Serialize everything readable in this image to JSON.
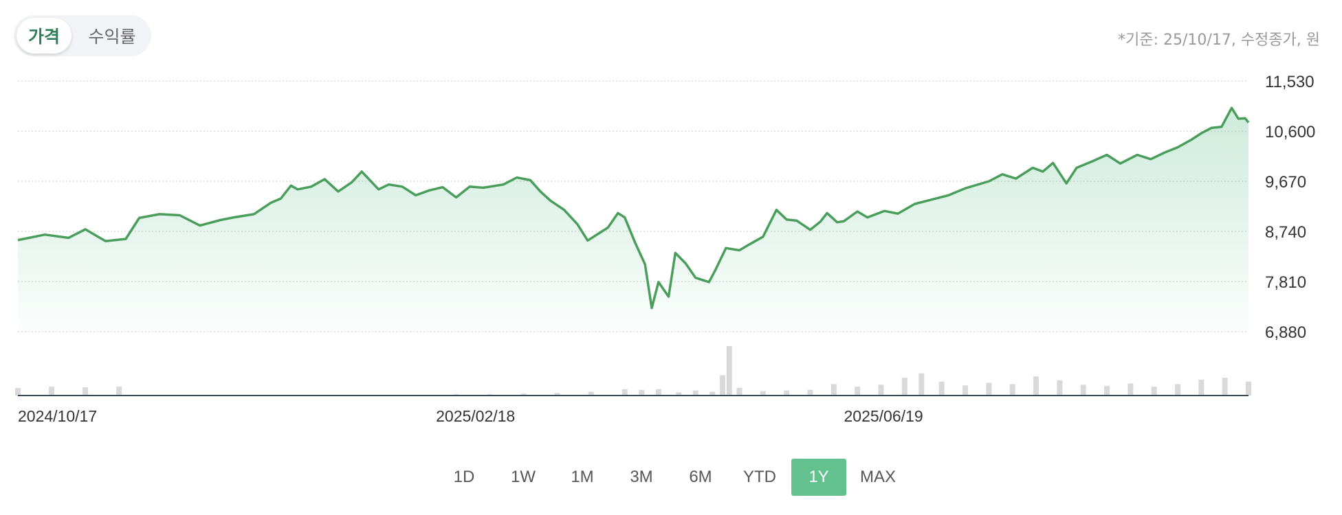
{
  "toggle": {
    "price_label": "가격",
    "return_label": "수익률"
  },
  "basis_note": "*기준: 25/10/17, 수정종가, 원",
  "ranges": [
    {
      "label": "1D",
      "active": false
    },
    {
      "label": "1W",
      "active": false
    },
    {
      "label": "1M",
      "active": false
    },
    {
      "label": "3M",
      "active": false
    },
    {
      "label": "6M",
      "active": false
    },
    {
      "label": "YTD",
      "active": false
    },
    {
      "label": "1Y",
      "active": true
    },
    {
      "label": "MAX",
      "active": false
    }
  ],
  "colors": {
    "line": "#4a9e5c",
    "fill": "#63c08f",
    "active_range": "#63c08f",
    "volume": "#d9d9d9"
  },
  "chart_data": {
    "type": "area",
    "y_ticks": [
      "11,530",
      "10,600",
      "9,670",
      "8,740",
      "7,810",
      "6,880"
    ],
    "ylim": [
      6880,
      11530
    ],
    "x_ticks": [
      "2024/10/17",
      "2025/02/18",
      "2025/06/19"
    ],
    "x_range": [
      "2024/10/17",
      "2025/10/17"
    ],
    "grid": true,
    "price_series": [
      [
        "2024/10/17",
        8580
      ],
      [
        "2024/10/25",
        8680
      ],
      [
        "2024/11/01",
        8620
      ],
      [
        "2024/11/06",
        8780
      ],
      [
        "2024/11/12",
        8560
      ],
      [
        "2024/11/18",
        8600
      ],
      [
        "2024/11/22",
        8990
      ],
      [
        "2024/11/28",
        9060
      ],
      [
        "2024/12/04",
        9040
      ],
      [
        "2024/12/10",
        8850
      ],
      [
        "2024/12/16",
        8950
      ],
      [
        "2024/12/20",
        9000
      ],
      [
        "2024/12/26",
        9060
      ],
      [
        "2024/12/31",
        9270
      ],
      [
        "2025/01/03",
        9350
      ],
      [
        "2025/01/06",
        9590
      ],
      [
        "2025/01/08",
        9520
      ],
      [
        "2025/01/12",
        9570
      ],
      [
        "2025/01/16",
        9710
      ],
      [
        "2025/01/20",
        9480
      ],
      [
        "2025/01/24",
        9650
      ],
      [
        "2025/01/27",
        9850
      ],
      [
        "2025/02/01",
        9520
      ],
      [
        "2025/02/04",
        9610
      ],
      [
        "2025/02/08",
        9570
      ],
      [
        "2025/02/12",
        9410
      ],
      [
        "2025/02/16",
        9500
      ],
      [
        "2025/02/20",
        9560
      ],
      [
        "2025/02/24",
        9370
      ],
      [
        "2025/02/28",
        9570
      ],
      [
        "2025/03/04",
        9550
      ],
      [
        "2025/03/10",
        9610
      ],
      [
        "2025/03/14",
        9740
      ],
      [
        "2025/03/18",
        9690
      ],
      [
        "2025/03/21",
        9480
      ],
      [
        "2025/03/24",
        9310
      ],
      [
        "2025/03/28",
        9140
      ],
      [
        "2025/04/01",
        8870
      ],
      [
        "2025/04/04",
        8570
      ],
      [
        "2025/04/07",
        8690
      ],
      [
        "2025/04/10",
        8810
      ],
      [
        "2025/04/13",
        9080
      ],
      [
        "2025/04/15",
        9000
      ],
      [
        "2025/04/18",
        8540
      ],
      [
        "2025/04/21",
        8130
      ],
      [
        "2025/04/23",
        7320
      ],
      [
        "2025/04/25",
        7800
      ],
      [
        "2025/04/28",
        7530
      ],
      [
        "2025/04/30",
        8340
      ],
      [
        "2025/05/03",
        8150
      ],
      [
        "2025/05/06",
        7880
      ],
      [
        "2025/05/10",
        7800
      ],
      [
        "2025/05/12",
        8040
      ],
      [
        "2025/05/15",
        8430
      ],
      [
        "2025/05/19",
        8390
      ],
      [
        "2025/05/22",
        8500
      ],
      [
        "2025/05/26",
        8640
      ],
      [
        "2025/05/30",
        9140
      ],
      [
        "2025/06/02",
        8960
      ],
      [
        "2025/06/05",
        8940
      ],
      [
        "2025/06/09",
        8770
      ],
      [
        "2025/06/12",
        8920
      ],
      [
        "2025/06/14",
        9080
      ],
      [
        "2025/06/17",
        8910
      ],
      [
        "2025/06/19",
        8930
      ],
      [
        "2025/06/23",
        9110
      ],
      [
        "2025/06/26",
        9000
      ],
      [
        "2025/07/01",
        9120
      ],
      [
        "2025/07/05",
        9070
      ],
      [
        "2025/07/10",
        9250
      ],
      [
        "2025/07/15",
        9330
      ],
      [
        "2025/07/20",
        9410
      ],
      [
        "2025/07/25",
        9540
      ],
      [
        "2025/08/01",
        9670
      ],
      [
        "2025/08/05",
        9800
      ],
      [
        "2025/08/09",
        9720
      ],
      [
        "2025/08/14",
        9920
      ],
      [
        "2025/08/17",
        9850
      ],
      [
        "2025/08/20",
        10010
      ],
      [
        "2025/08/24",
        9630
      ],
      [
        "2025/08/27",
        9920
      ],
      [
        "2025/09/01",
        10050
      ],
      [
        "2025/09/05",
        10160
      ],
      [
        "2025/09/09",
        10000
      ],
      [
        "2025/09/14",
        10160
      ],
      [
        "2025/09/18",
        10080
      ],
      [
        "2025/09/22",
        10200
      ],
      [
        "2025/09/26",
        10300
      ],
      [
        "2025/09/30",
        10440
      ],
      [
        "2025/10/03",
        10560
      ],
      [
        "2025/10/06",
        10660
      ],
      [
        "2025/10/09",
        10680
      ],
      [
        "2025/10/12",
        11030
      ],
      [
        "2025/10/14",
        10830
      ],
      [
        "2025/10/16",
        10840
      ],
      [
        "2025/10/17",
        10760
      ]
    ],
    "volume_series": [
      [
        "2024/10/17",
        12
      ],
      [
        "2024/10/27",
        14
      ],
      [
        "2024/11/06",
        13
      ],
      [
        "2024/11/16",
        14
      ],
      [
        "2024/11/26",
        1
      ],
      [
        "2024/12/06",
        1
      ],
      [
        "2024/12/16",
        1
      ],
      [
        "2024/12/26",
        1
      ],
      [
        "2025/01/05",
        1
      ],
      [
        "2025/01/15",
        1
      ],
      [
        "2025/01/25",
        1
      ],
      [
        "2025/02/04",
        1
      ],
      [
        "2025/02/14",
        1
      ],
      [
        "2025/02/24",
        2
      ],
      [
        "2025/03/06",
        2
      ],
      [
        "2025/03/16",
        3
      ],
      [
        "2025/03/26",
        4
      ],
      [
        "2025/04/05",
        6
      ],
      [
        "2025/04/15",
        10
      ],
      [
        "2025/04/20",
        9
      ],
      [
        "2025/04/25",
        10
      ],
      [
        "2025/05/01",
        5
      ],
      [
        "2025/05/06",
        8
      ],
      [
        "2025/05/11",
        6
      ],
      [
        "2025/05/14",
        32
      ],
      [
        "2025/05/16",
        78
      ],
      [
        "2025/05/19",
        12
      ],
      [
        "2025/05/26",
        7
      ],
      [
        "2025/06/02",
        8
      ],
      [
        "2025/06/09",
        9
      ],
      [
        "2025/06/16",
        18
      ],
      [
        "2025/06/23",
        14
      ],
      [
        "2025/06/30",
        17
      ],
      [
        "2025/07/07",
        28
      ],
      [
        "2025/07/12",
        35
      ],
      [
        "2025/07/18",
        22
      ],
      [
        "2025/07/25",
        16
      ],
      [
        "2025/08/01",
        20
      ],
      [
        "2025/08/08",
        18
      ],
      [
        "2025/08/15",
        30
      ],
      [
        "2025/08/22",
        24
      ],
      [
        "2025/08/29",
        17
      ],
      [
        "2025/09/05",
        15
      ],
      [
        "2025/09/12",
        19
      ],
      [
        "2025/09/19",
        14
      ],
      [
        "2025/09/26",
        18
      ],
      [
        "2025/10/03",
        25
      ],
      [
        "2025/10/10",
        28
      ],
      [
        "2025/10/17",
        22
      ]
    ]
  }
}
